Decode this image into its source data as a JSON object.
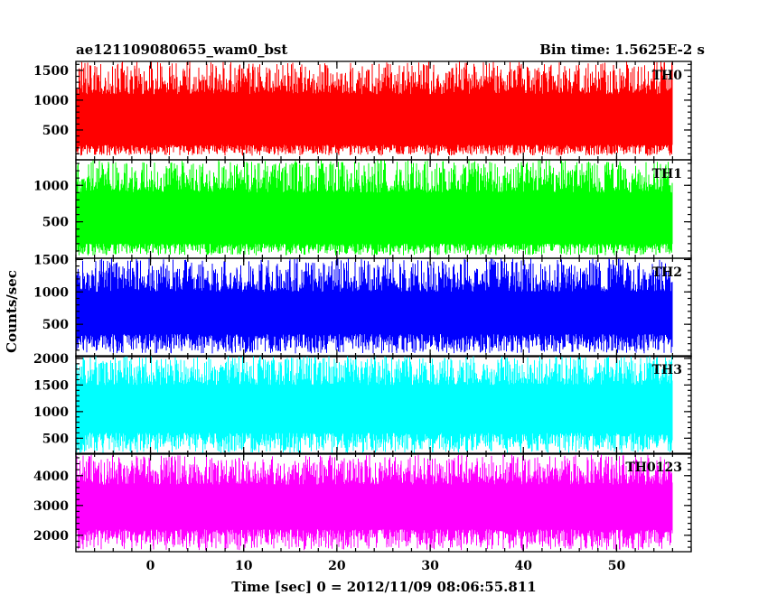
{
  "chart_data": {
    "type": "line",
    "title_left": "ae121109080655_wam0_bst",
    "title_right": "Bin time: 1.5625E-2 s",
    "xlabel": "Time [sec] 0 = 2012/11/09 08:06:55.811",
    "ylabel": "Counts/sec",
    "xlim": [
      -8,
      58
    ],
    "data_x_range": [
      -8,
      56
    ],
    "x_ticks": [
      0,
      10,
      20,
      30,
      40,
      50
    ],
    "x_tick_labels": [
      "0",
      "10",
      "20",
      "30",
      "40",
      "50"
    ],
    "panels": [
      {
        "label": "TH0",
        "color": "#ff0000",
        "ylim": [
          0,
          1650
        ],
        "y_ticks": [
          500,
          1000,
          1500
        ],
        "y_tick_labels": [
          "500",
          "1000",
          "1500"
        ],
        "band_low": 250,
        "band_high": 1100,
        "max_peak": 1650,
        "min_dip": 70
      },
      {
        "label": "TH1",
        "color": "#00ff00",
        "ylim": [
          0,
          1350
        ],
        "y_ticks": [
          500,
          1000
        ],
        "y_tick_labels": [
          "500",
          "1000"
        ],
        "band_low": 200,
        "band_high": 900,
        "max_peak": 1350,
        "min_dip": 40
      },
      {
        "label": "TH2",
        "color": "#0000ff",
        "ylim": [
          0,
          1520
        ],
        "y_ticks": [
          500,
          1000,
          1500
        ],
        "y_tick_labels": [
          "500",
          "1000",
          "1500"
        ],
        "band_low": 350,
        "band_high": 1000,
        "max_peak": 1520,
        "min_dip": 50
      },
      {
        "label": "TH3",
        "color": "#00ffff",
        "ylim": [
          200,
          2050
        ],
        "y_ticks": [
          500,
          1000,
          1500,
          2000
        ],
        "y_tick_labels": [
          "500",
          "1000",
          "1500",
          "2000"
        ],
        "band_low": 600,
        "band_high": 1500,
        "max_peak": 2050,
        "min_dip": 220
      },
      {
        "label": "TH0123",
        "color": "#ff00ff",
        "ylim": [
          1450,
          4750
        ],
        "y_ticks": [
          2000,
          3000,
          4000
        ],
        "y_tick_labels": [
          "2000",
          "3000",
          "4000"
        ],
        "band_low": 2200,
        "band_high": 3700,
        "max_peak": 4700,
        "min_dip": 1500
      }
    ]
  }
}
